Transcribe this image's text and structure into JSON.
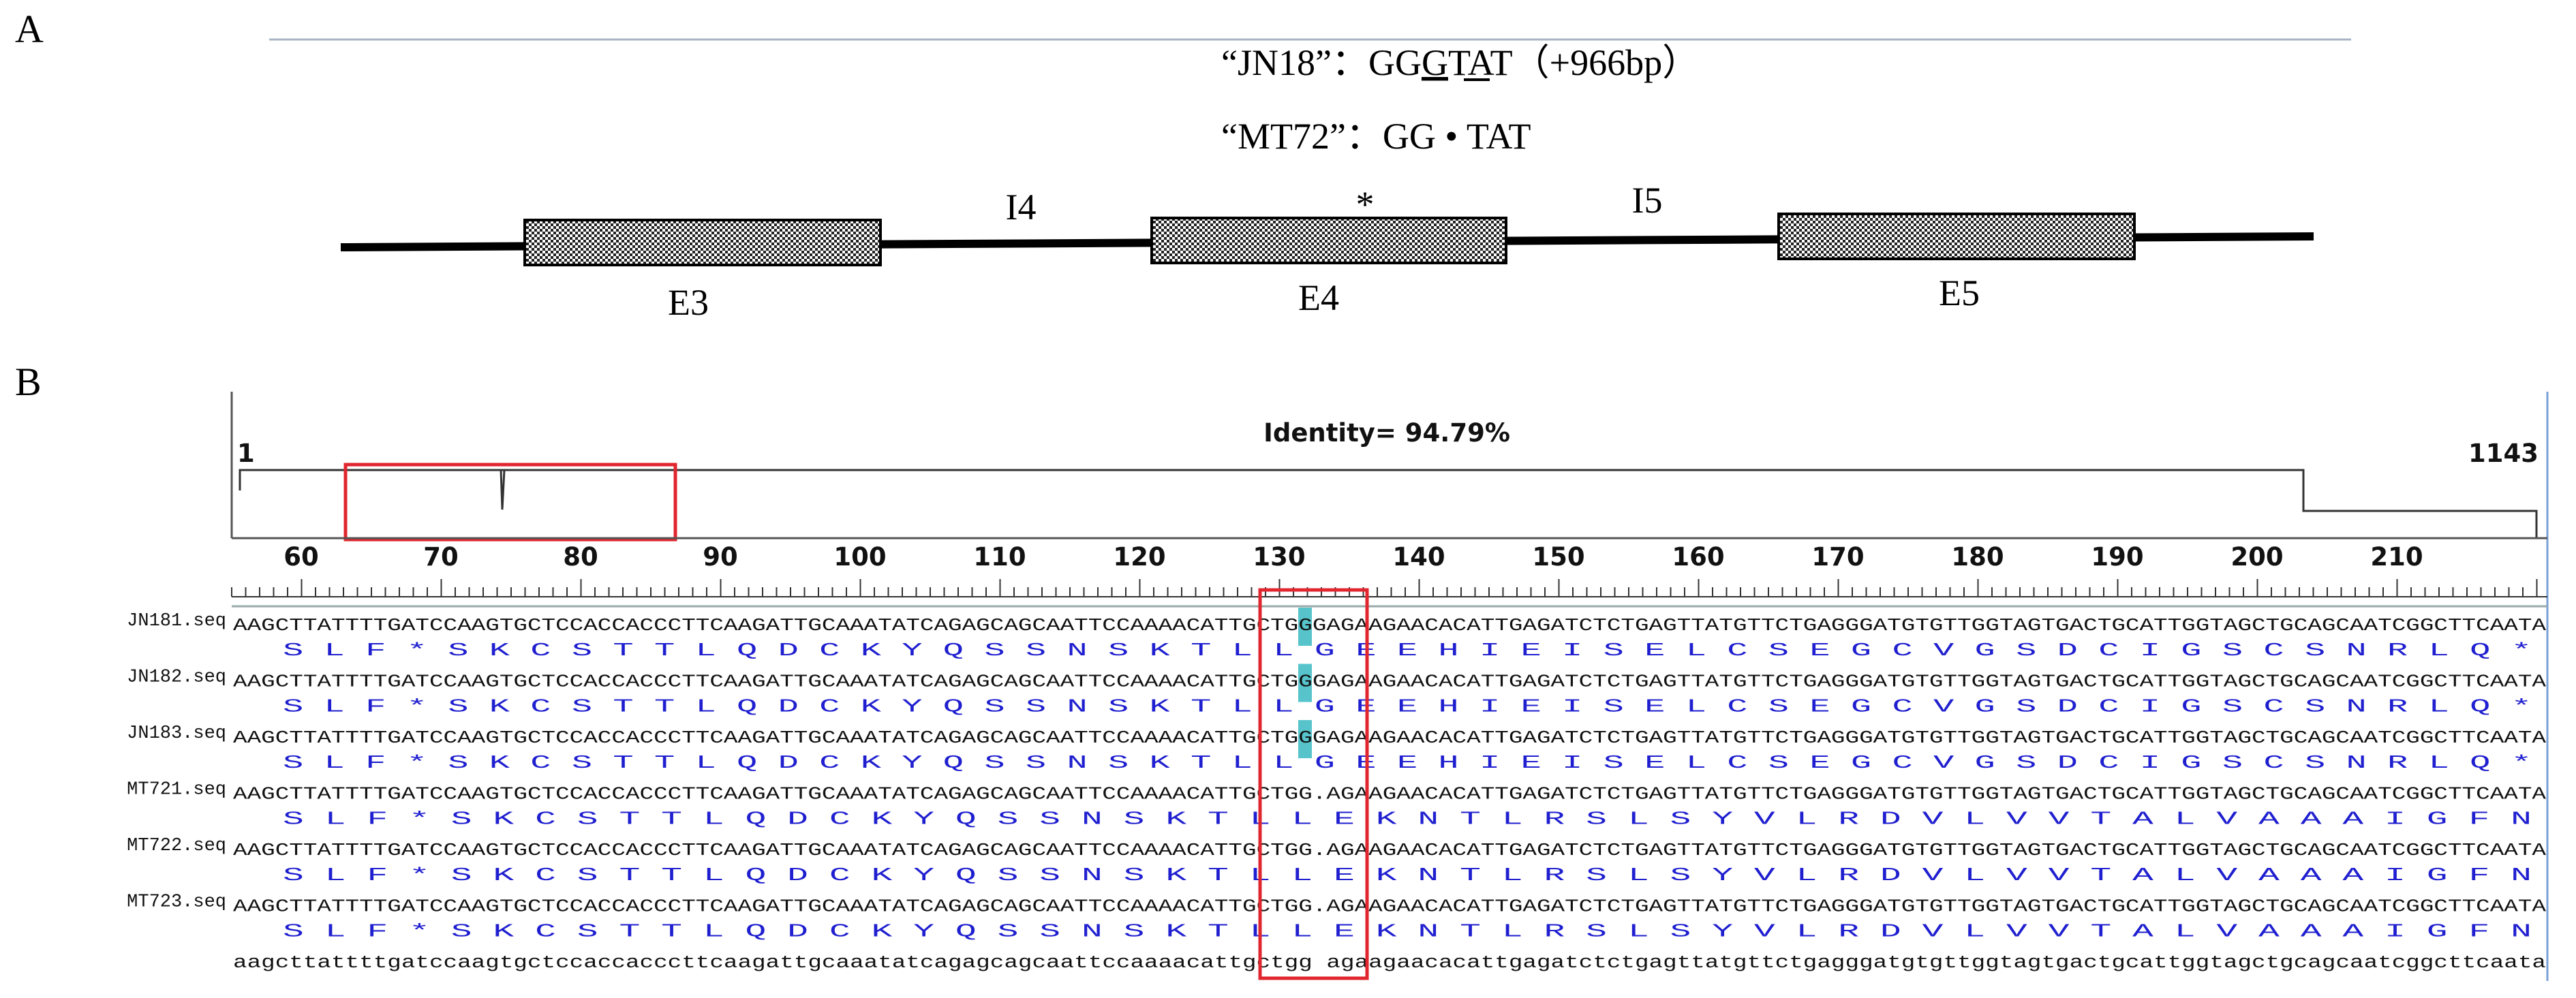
{
  "panel_a": {
    "label": "A",
    "line1": {
      "quote": "“JN18”：",
      "pre": "GG",
      "underlined": "G",
      "post": "TAT（+966bp）"
    },
    "line2": "“MT72”：GG • TAT",
    "exons": [
      "E3",
      "E4",
      "E5"
    ],
    "introns": [
      "I4",
      "I5"
    ],
    "mutation_marker": "*"
  },
  "panel_b": {
    "label": "B",
    "identity": "Identity= 94.79%",
    "range_start": "1",
    "range_end": "1143",
    "ruler_labels": [
      "60",
      "70",
      "80",
      "90",
      "100",
      "110",
      "120",
      "130",
      "140",
      "150",
      "160",
      "170",
      "180",
      "190",
      "200",
      "210"
    ],
    "sequences": [
      {
        "name": "JN181.seq",
        "dna_a": "AAGCTTATTTTGATCCAAGTGCTCCACCACCCTTCAAGATTGCAAATATCAGAGCAGCAATTCCAAAACATTG",
        "dna_b": "CTGG",
        "dna_hl": "G",
        "dna_c": "AGAAGAACACATTGAGATCTCTGAGTTATGTTCTGAGGGATGTGTTGGTAGTGACTGCATTGGTAGCTGCAGCAATCGGCTTCAATA",
        "aa": "S L F * S K C S T T L Q D C K Y Q S S N S K T L L G E E H I E I S E L C S E G C V G S D C I G S C S N R L Q *"
      },
      {
        "name": "JN182.seq",
        "dna_a": "AAGCTTATTTTGATCCAAGTGCTCCACCACCCTTCAAGATTGCAAATATCAGAGCAGCAATTCCAAAACATTG",
        "dna_b": "CTGG",
        "dna_hl": "G",
        "dna_c": "AGAAGAACACATTGAGATCTCTGAGTTATGTTCTGAGGGATGTGTTGGTAGTGACTGCATTGGTAGCTGCAGCAATCGGCTTCAATA",
        "aa": "S L F * S K C S T T L Q D C K Y Q S S N S K T L L G E E H I E I S E L C S E G C V G S D C I G S C S N R L Q *"
      },
      {
        "name": "JN183.seq",
        "dna_a": "AAGCTTATTTTGATCCAAGTGCTCCACCACCCTTCAAGATTGCAAATATCAGAGCAGCAATTCCAAAACATTG",
        "dna_b": "CTGG",
        "dna_hl": "G",
        "dna_c": "AGAAGAACACATTGAGATCTCTGAGTTATGTTCTGAGGGATGTGTTGGTAGTGACTGCATTGGTAGCTGCAGCAATCGGCTTCAATA",
        "aa": "S L F * S K C S T T L Q D C K Y Q S S N S K T L L G E E H I E I S E L C S E G C V G S D C I G S C S N R L Q *"
      },
      {
        "name": "MT721.seq",
        "dna_a": "AAGCTTATTTTGATCCAAGTGCTCCACCACCCTTCAAGATTGCAAATATCAGAGCAGCAATTCCAAAACATTG",
        "dna_b": "CTGG",
        "dna_hl": ".",
        "dna_c": "AGAAGAACACATTGAGATCTCTGAGTTATGTTCTGAGGGATGTGTTGGTAGTGACTGCATTGGTAGCTGCAGCAATCGGCTTCAATA",
        "aa": "S L F * S K C S T T L Q D C K Y Q S S N S K T L L   E K N T L R S L S Y V L R D V L V V T A L V A A A I G F N"
      },
      {
        "name": "MT722.seq",
        "dna_a": "AAGCTTATTTTGATCCAAGTGCTCCACCACCCTTCAAGATTGCAAATATCAGAGCAGCAATTCCAAAACATTG",
        "dna_b": "CTGG",
        "dna_hl": ".",
        "dna_c": "AGAAGAACACATTGAGATCTCTGAGTTATGTTCTGAGGGATGTGTTGGTAGTGACTGCATTGGTAGCTGCAGCAATCGGCTTCAATA",
        "aa": "S L F * S K C S T T L Q D C K Y Q S S N S K T L L   E K N T L R S L S Y V L R D V L V V T A L V A A A I G F N"
      },
      {
        "name": "MT723.seq",
        "dna_a": "AAGCTTATTTTGATCCAAGTGCTCCACCACCCTTCAAGATTGCAAATATCAGAGCAGCAATTCCAAAACATTG",
        "dna_b": "CTGG",
        "dna_hl": ".",
        "dna_c": "AGAAGAACACATTGAGATCTCTGAGTTATGTTCTGAGGGATGTGTTGGTAGTGACTGCATTGGTAGCTGCAGCAATCGGCTTCAATA",
        "aa": "S L F * S K C S T T L Q D C K Y Q S S N S K T L L   E K N T L R S L S Y V L R D V L V V T A L V A A A I G F N"
      }
    ],
    "consensus": "aagcttattttgatccaagtgctccaccacccttcaagattgcaaatatcagagcagcaattccaaaacattgctgg agaagaacacattgagatctctgagttatgttctgagggatgtgttggtagtgactgcattggtagctgcagcaatcggcttcaata",
    "colors": {
      "amino_acid": "#1f1fd0",
      "highlight": "#57c4cc",
      "box": "#e0262e",
      "divider": "#a9b4c4"
    }
  }
}
